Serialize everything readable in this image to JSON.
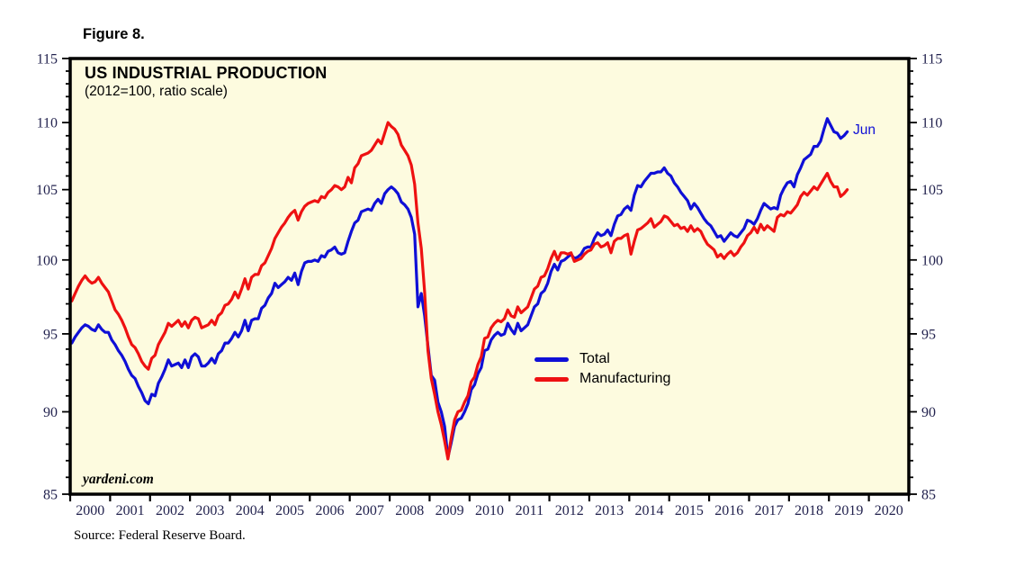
{
  "figure_label": "Figure 8.",
  "chart": {
    "title": "US INDUSTRIAL PRODUCTION",
    "subtitle": "(2012=100, ratio scale)",
    "watermark": "yardeni.com",
    "end_label": "Jun",
    "legend": [
      {
        "label": "Total"
      },
      {
        "label": "Manufacturing"
      }
    ]
  },
  "source_note": "Source: Federal Reserve Board.",
  "colors": {
    "page_bg": "#ffffff",
    "plot_bg": "#fdfbdf",
    "frame": "#000000",
    "tick": "#000000",
    "tick_label": "#23234f",
    "total": "#0f0fd6",
    "manufacturing": "#ee1111"
  },
  "chart_data": {
    "type": "line",
    "title": "US INDUSTRIAL PRODUCTION",
    "subtitle": "(2012=100, ratio scale)",
    "y_scale": "log",
    "ylim": [
      85,
      115
    ],
    "y_ticks_major": [
      85,
      90,
      95,
      100,
      105,
      110,
      115
    ],
    "y_minor_step": 1,
    "x_start": 2000,
    "x_end": 2021,
    "x_tick_years": [
      2000,
      2001,
      2002,
      2003,
      2004,
      2005,
      2006,
      2007,
      2008,
      2009,
      2010,
      2011,
      2012,
      2013,
      2014,
      2015,
      2016,
      2017,
      2018,
      2019,
      2020
    ],
    "frequency": "monthly",
    "first_period": "2000-01",
    "last_period": "2019-06",
    "series": [
      {
        "name": "Total",
        "color": "#0f0fd6",
        "end_label": "Jun",
        "values": [
          94.4,
          94.8,
          95.1,
          95.4,
          95.6,
          95.5,
          95.3,
          95.2,
          95.6,
          95.3,
          95.1,
          95.1,
          94.6,
          94.3,
          93.9,
          93.6,
          93.2,
          92.7,
          92.3,
          92.1,
          91.6,
          91.2,
          90.7,
          90.5,
          91.1,
          91.0,
          91.8,
          92.2,
          92.7,
          93.3,
          92.9,
          93.0,
          93.1,
          92.8,
          93.3,
          92.8,
          93.5,
          93.7,
          93.5,
          92.9,
          92.9,
          93.1,
          93.4,
          93.1,
          93.7,
          93.9,
          94.4,
          94.4,
          94.7,
          95.1,
          94.8,
          95.2,
          95.9,
          95.2,
          95.9,
          96.0,
          96.0,
          96.7,
          96.9,
          97.4,
          97.7,
          98.4,
          98.1,
          98.3,
          98.5,
          98.8,
          98.6,
          99.1,
          98.3,
          99.2,
          99.8,
          99.9,
          99.9,
          100.0,
          99.9,
          100.3,
          100.2,
          100.6,
          100.7,
          100.9,
          100.5,
          100.4,
          100.5,
          101.3,
          102.0,
          102.6,
          102.8,
          103.4,
          103.5,
          103.6,
          103.5,
          104.0,
          104.3,
          104.0,
          104.7,
          105.0,
          105.2,
          105.0,
          104.7,
          104.1,
          103.9,
          103.6,
          103.0,
          101.8,
          96.8,
          97.7,
          96.2,
          94.2,
          92.3,
          92.0,
          90.6,
          90.0,
          89.1,
          87.2,
          88.1,
          89.1,
          89.5,
          89.6,
          90.0,
          90.5,
          91.4,
          91.7,
          92.4,
          92.8,
          93.9,
          94.0,
          94.6,
          94.9,
          95.1,
          94.9,
          95.0,
          95.7,
          95.3,
          95.0,
          95.7,
          95.2,
          95.4,
          95.6,
          96.2,
          96.8,
          97.0,
          97.7,
          97.9,
          98.4,
          99.2,
          99.7,
          99.3,
          99.9,
          100.0,
          100.2,
          100.4,
          100.1,
          100.2,
          100.4,
          100.8,
          100.9,
          100.9,
          101.5,
          101.9,
          101.7,
          101.8,
          102.1,
          101.7,
          102.5,
          103.1,
          103.2,
          103.6,
          103.8,
          103.5,
          104.6,
          105.3,
          105.2,
          105.6,
          105.9,
          106.2,
          106.2,
          106.3,
          106.3,
          106.6,
          106.2,
          106.0,
          105.5,
          105.2,
          104.8,
          104.5,
          104.2,
          103.6,
          104.0,
          103.7,
          103.3,
          102.9,
          102.6,
          102.4,
          102.0,
          101.6,
          101.7,
          101.3,
          101.6,
          101.9,
          101.7,
          101.6,
          101.9,
          102.2,
          102.8,
          102.7,
          102.5,
          102.9,
          103.5,
          104.0,
          103.8,
          103.6,
          103.7,
          103.6,
          104.6,
          105.1,
          105.5,
          105.6,
          105.2,
          106.1,
          106.6,
          107.2,
          107.4,
          107.6,
          108.2,
          108.2,
          108.6,
          109.5,
          110.3,
          109.8,
          109.3,
          109.2,
          108.8,
          109.0,
          109.3
        ]
      },
      {
        "name": "Manufacturing",
        "color": "#ee1111",
        "values": [
          97.2,
          97.7,
          98.2,
          98.6,
          98.9,
          98.6,
          98.4,
          98.5,
          98.8,
          98.4,
          98.1,
          97.8,
          97.2,
          96.6,
          96.3,
          95.9,
          95.4,
          94.8,
          94.3,
          94.1,
          93.7,
          93.2,
          92.9,
          92.7,
          93.4,
          93.6,
          94.3,
          94.7,
          95.1,
          95.7,
          95.5,
          95.7,
          95.9,
          95.5,
          95.8,
          95.4,
          95.9,
          96.1,
          96.0,
          95.4,
          95.5,
          95.6,
          95.9,
          95.6,
          96.2,
          96.4,
          96.9,
          97.0,
          97.3,
          97.8,
          97.4,
          98.0,
          98.7,
          98.0,
          98.8,
          99.0,
          99.0,
          99.6,
          99.8,
          100.3,
          100.8,
          101.5,
          101.9,
          102.3,
          102.6,
          103.0,
          103.3,
          103.5,
          102.8,
          103.4,
          103.8,
          104.0,
          104.1,
          104.2,
          104.1,
          104.5,
          104.4,
          104.8,
          105.0,
          105.3,
          105.2,
          105.0,
          105.2,
          105.9,
          105.5,
          106.6,
          106.9,
          107.5,
          107.6,
          107.7,
          107.9,
          108.3,
          108.7,
          108.4,
          109.2,
          110.0,
          109.7,
          109.5,
          109.1,
          108.3,
          107.9,
          107.5,
          106.8,
          105.4,
          102.6,
          100.8,
          97.8,
          93.9,
          92.1,
          91.1,
          90.0,
          89.2,
          88.2,
          87.1,
          88.4,
          89.5,
          90.0,
          90.1,
          90.6,
          91.0,
          91.9,
          92.2,
          93.0,
          93.5,
          94.7,
          94.8,
          95.4,
          95.7,
          95.9,
          95.8,
          96.0,
          96.6,
          96.2,
          96.1,
          96.8,
          96.4,
          96.6,
          96.8,
          97.4,
          98.0,
          98.2,
          98.8,
          98.9,
          99.4,
          100.1,
          100.6,
          100.0,
          100.5,
          100.5,
          100.4,
          100.5,
          99.9,
          100.0,
          100.1,
          100.4,
          100.6,
          100.7,
          101.1,
          101.2,
          100.9,
          101.0,
          101.2,
          100.5,
          101.3,
          101.5,
          101.5,
          101.7,
          101.8,
          100.4,
          101.3,
          102.1,
          102.2,
          102.4,
          102.6,
          102.9,
          102.3,
          102.5,
          102.7,
          103.1,
          103.0,
          102.7,
          102.4,
          102.5,
          102.2,
          102.3,
          102.0,
          102.4,
          102.0,
          102.2,
          102.0,
          101.5,
          101.1,
          100.9,
          100.7,
          100.2,
          100.4,
          100.1,
          100.4,
          100.6,
          100.3,
          100.5,
          100.9,
          101.2,
          101.7,
          101.9,
          102.3,
          101.9,
          102.5,
          102.1,
          102.4,
          102.2,
          102.0,
          103.0,
          103.2,
          103.1,
          103.4,
          103.3,
          103.6,
          103.9,
          104.5,
          104.8,
          104.6,
          104.9,
          105.2,
          105.0,
          105.4,
          105.8,
          106.2,
          105.6,
          105.2,
          105.2,
          104.5,
          104.7,
          105.0
        ]
      }
    ]
  }
}
